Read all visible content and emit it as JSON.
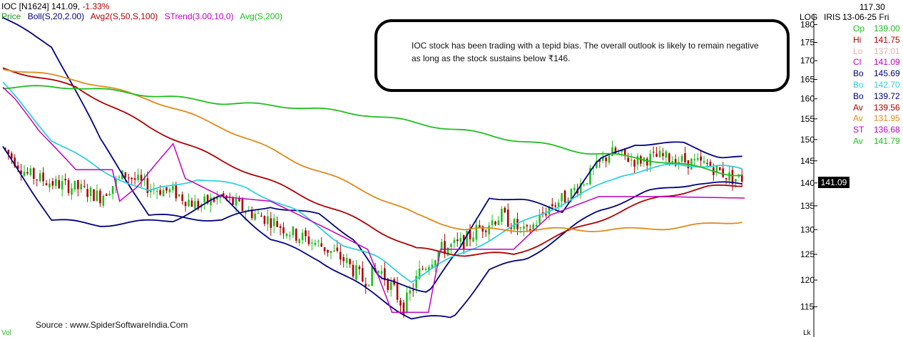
{
  "header": {
    "symbol": "IOC [N1624]",
    "price": "141.09,",
    "change": "-1.33%",
    "indicators": [
      {
        "label": "Price",
        "color": "#1a9c1a"
      },
      {
        "label": "Boll(S,20,2.00)",
        "color": "#000080"
      },
      {
        "label": "Avg2(S,50,S,100)",
        "color": "#b00000"
      },
      {
        "label": "STrend(3.00,10,0)",
        "color": "#c000c0"
      },
      {
        "label": "Avg(S,200)",
        "color": "#1fbf1f"
      }
    ]
  },
  "annotation": {
    "text": "IOC stock has been trading with a tepid bias. The overall outlook is likely to remain negative as long as the stock sustains below ₹146."
  },
  "axis": {
    "scale_label": "LOG",
    "indicator_label": "IRIS",
    "current_price_badge": "141.09"
  },
  "side_panel": {
    "top_value": "117.30",
    "date": "13-06-25 Fri",
    "rows": [
      {
        "k": "Op",
        "v": "139.00",
        "color": "#1fbf1f"
      },
      {
        "k": "Hi",
        "v": "141.75",
        "color": "#b00000"
      },
      {
        "k": "Lo",
        "v": "137.01",
        "color": "#e8b0b0"
      },
      {
        "k": "Cl",
        "v": "141.09",
        "color": "#c000c0"
      },
      {
        "k": "Bo",
        "v": "145.69",
        "color": "#000080"
      },
      {
        "k": "Bo",
        "v": "142.70",
        "color": "#30d0e0"
      },
      {
        "k": "Bo",
        "v": "139.72",
        "color": "#000080"
      },
      {
        "k": "Av",
        "v": "139.56",
        "color": "#b00000"
      },
      {
        "k": "Av",
        "v": "131.95",
        "color": "#e08a1a"
      },
      {
        "k": "ST",
        "v": "136.68",
        "color": "#c000c0"
      },
      {
        "k": "Av",
        "v": "141.79",
        "color": "#1fbf1f"
      }
    ]
  },
  "source": "Source : www.SpiderSoftwareIndia.Com",
  "footer_labels": {
    "left": "Vol",
    "right": "Lk"
  },
  "colors": {
    "up_candle": "#1fbf1f",
    "down_candle": "#b00000",
    "boll_outer": "#000080",
    "boll_mid": "#30d0e0",
    "avg50": "#b00000",
    "avg100": "#e08a1a",
    "avg200": "#1fbf1f",
    "strend": "#c000c0"
  },
  "chart_data": {
    "type": "line",
    "title": "",
    "y_scale": "log",
    "yticks": [
      115,
      120,
      125,
      130,
      135,
      140,
      145,
      150,
      155,
      160,
      165,
      170,
      175,
      180
    ],
    "ylim": [
      111,
      183
    ],
    "n_bars": 240,
    "last_candle": {
      "open": 139.0,
      "high": 141.75,
      "low": 137.01,
      "close": 141.09
    },
    "close_anchors": [
      [
        0,
        148
      ],
      [
        10,
        142
      ],
      [
        20,
        140
      ],
      [
        30,
        139
      ],
      [
        40,
        137
      ],
      [
        50,
        142
      ],
      [
        60,
        139
      ],
      [
        70,
        138
      ],
      [
        80,
        135
      ],
      [
        90,
        137
      ],
      [
        100,
        134
      ],
      [
        110,
        132
      ],
      [
        120,
        129
      ],
      [
        130,
        127
      ],
      [
        140,
        124
      ],
      [
        148,
        120
      ],
      [
        155,
        122
      ],
      [
        165,
        115
      ],
      [
        172,
        122
      ],
      [
        180,
        126
      ],
      [
        188,
        127
      ],
      [
        195,
        130
      ],
      [
        205,
        133
      ],
      [
        215,
        129
      ],
      [
        225,
        135
      ],
      [
        232,
        137
      ],
      [
        240,
        141
      ],
      [
        250,
        147
      ],
      [
        260,
        145
      ],
      [
        270,
        146
      ],
      [
        280,
        145
      ],
      [
        290,
        144
      ],
      [
        300,
        141
      ],
      [
        305,
        141.09
      ]
    ],
    "series": [
      {
        "name": "Bo",
        "values_anchor": [
          [
            0,
            182
          ],
          [
            20,
            174
          ],
          [
            40,
            150
          ],
          [
            60,
            133
          ],
          [
            90,
            132
          ],
          [
            110,
            135
          ],
          [
            130,
            133
          ],
          [
            145,
            128
          ],
          [
            155,
            120
          ],
          [
            175,
            118
          ],
          [
            188,
            126
          ],
          [
            200,
            137
          ],
          [
            215,
            136
          ],
          [
            230,
            134
          ],
          [
            245,
            145
          ],
          [
            260,
            149
          ],
          [
            280,
            149
          ],
          [
            295,
            146
          ],
          [
            305,
            145.69
          ]
        ]
      },
      {
        "name": "Bo",
        "values_anchor": [
          [
            0,
            164
          ],
          [
            20,
            150
          ],
          [
            40,
            143
          ],
          [
            60,
            138
          ],
          [
            80,
            141
          ],
          [
            100,
            139
          ],
          [
            120,
            134
          ],
          [
            140,
            127
          ],
          [
            155,
            124
          ],
          [
            168,
            120
          ],
          [
            180,
            123
          ],
          [
            200,
            128
          ],
          [
            220,
            133
          ],
          [
            240,
            138
          ],
          [
            255,
            142
          ],
          [
            275,
            144
          ],
          [
            295,
            144
          ],
          [
            305,
            142.7
          ]
        ]
      },
      {
        "name": "Bo",
        "values_anchor": [
          [
            0,
            148
          ],
          [
            20,
            132
          ],
          [
            40,
            131
          ],
          [
            70,
            132
          ],
          [
            90,
            137
          ],
          [
            110,
            128
          ],
          [
            130,
            124
          ],
          [
            150,
            118
          ],
          [
            168,
            113
          ],
          [
            185,
            113
          ],
          [
            200,
            122
          ],
          [
            215,
            124
          ],
          [
            230,
            129
          ],
          [
            245,
            134
          ],
          [
            265,
            138
          ],
          [
            285,
            140
          ],
          [
            305,
            139.72
          ]
        ]
      },
      {
        "name": "Av",
        "values_anchor": [
          [
            0,
            168
          ],
          [
            30,
            163
          ],
          [
            60,
            153
          ],
          [
            90,
            145
          ],
          [
            120,
            138
          ],
          [
            150,
            131
          ],
          [
            170,
            126
          ],
          [
            190,
            125
          ],
          [
            210,
            125
          ],
          [
            230,
            129
          ],
          [
            250,
            133
          ],
          [
            270,
            137
          ],
          [
            290,
            139
          ],
          [
            305,
            139.56
          ]
        ]
      },
      {
        "name": "Av",
        "values_anchor": [
          [
            0,
            168
          ],
          [
            30,
            165
          ],
          [
            60,
            160
          ],
          [
            90,
            153
          ],
          [
            120,
            145
          ],
          [
            150,
            138
          ],
          [
            170,
            133
          ],
          [
            190,
            130
          ],
          [
            220,
            130
          ],
          [
            260,
            130
          ],
          [
            290,
            131
          ],
          [
            305,
            131.95
          ]
        ]
      },
      {
        "name": "Av",
        "values_anchor": [
          [
            0,
            163
          ],
          [
            30,
            163
          ],
          [
            60,
            161
          ],
          [
            90,
            159
          ],
          [
            120,
            158
          ],
          [
            150,
            156
          ],
          [
            180,
            153
          ],
          [
            210,
            150
          ],
          [
            240,
            147
          ],
          [
            270,
            145
          ],
          [
            300,
            142
          ],
          [
            305,
            141.79
          ]
        ]
      },
      {
        "name": "ST",
        "values_anchor": [
          [
            0,
            163
          ],
          [
            5,
            160
          ],
          [
            15,
            152
          ],
          [
            30,
            143
          ],
          [
            45,
            143
          ],
          [
            48,
            136
          ],
          [
            55,
            139
          ],
          [
            70,
            149
          ],
          [
            75,
            141
          ],
          [
            90,
            137
          ],
          [
            110,
            136
          ],
          [
            130,
            131
          ],
          [
            150,
            126
          ],
          [
            160,
            114
          ],
          [
            175,
            114
          ],
          [
            180,
            126
          ],
          [
            210,
            126
          ],
          [
            225,
            133
          ],
          [
            245,
            137
          ],
          [
            270,
            137
          ],
          [
            305,
            136.68
          ]
        ]
      }
    ]
  }
}
